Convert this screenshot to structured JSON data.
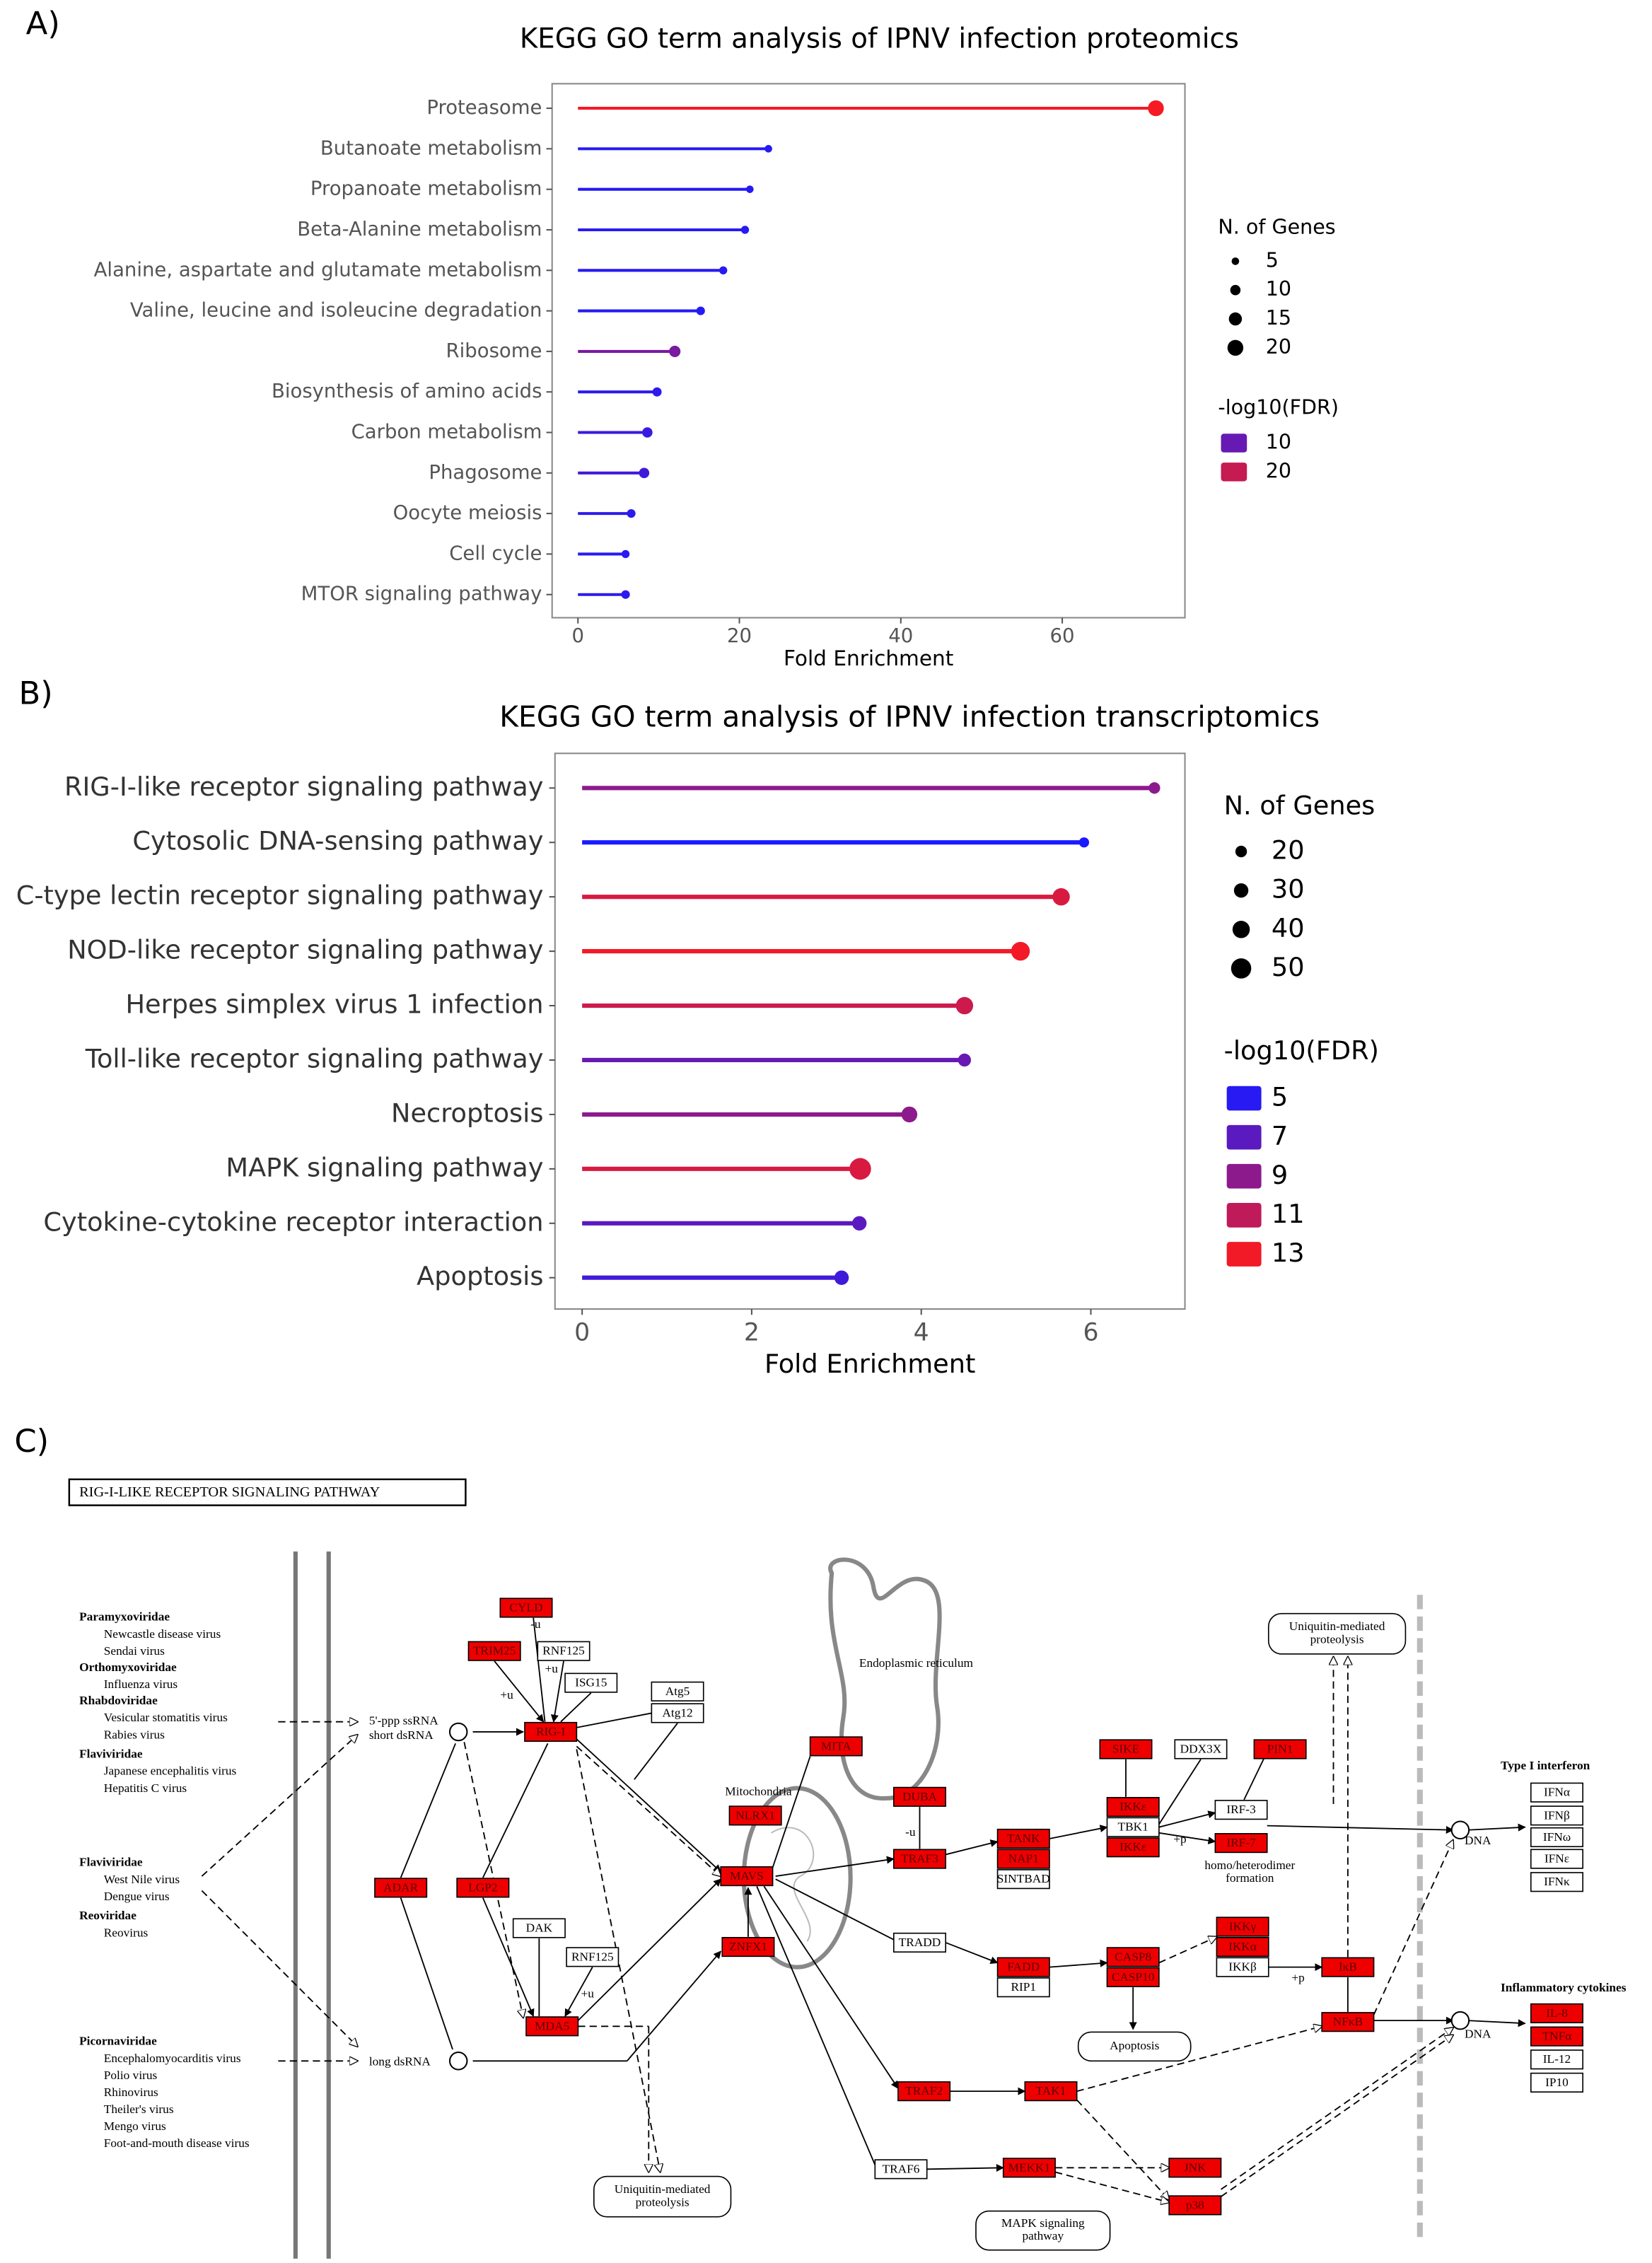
{
  "panel_labels": [
    "A)",
    "B)",
    "C)"
  ],
  "chart_data": [
    {
      "type": "lollipop",
      "title": "KEGG GO term analysis of IPNV infection proteomics",
      "categories": [
        "Proteasome",
        "Butanoate metabolism",
        "Propanoate metabolism",
        "Beta-Alanine metabolism",
        "Alanine, aspartate and glutamate metabolism",
        "Valine, leucine and isoleucine degradation",
        "Ribosome",
        "Biosynthesis of amino acids",
        "Carbon metabolism",
        "Phagosome",
        "Oocyte meiosis",
        "Cell cycle",
        "MTOR signaling pathway"
      ],
      "values": [
        71.6,
        23.6,
        21.3,
        20.7,
        18,
        15.2,
        12,
        9.8,
        8.6,
        8.2,
        6.6,
        5.9,
        5.9
      ],
      "sizes": [
        20,
        5,
        5,
        6,
        6,
        7,
        12,
        8,
        10,
        10,
        7,
        6,
        7
      ],
      "fdr": [
        25,
        3,
        3,
        3.5,
        3.5,
        3,
        12,
        4,
        5,
        6,
        4,
        3.5,
        4
      ],
      "xlabel": "Fold Enrichment",
      "xlim": [
        -3.2,
        75.2
      ],
      "xticks": [
        0,
        20,
        40,
        60
      ],
      "size_legend": {
        "title": "N. of Genes",
        "values": [
          5,
          10,
          15,
          20
        ]
      },
      "color_legend": {
        "title": "-log10(FDR)",
        "values": [
          10,
          20
        ]
      },
      "color_low": "#1a1aff",
      "color_high": "#ff1a1a",
      "color_lim": [
        2,
        26
      ],
      "size_lim": [
        5,
        20
      ]
    },
    {
      "type": "lollipop",
      "title": "KEGG GO term analysis of IPNV infection transcriptomics",
      "categories": [
        "RIG-I-like receptor signaling pathway",
        "Cytosolic DNA-sensing pathway",
        "C-type lectin receptor signaling pathway",
        "NOD-like receptor signaling pathway",
        "Herpes simplex virus 1 infection",
        "Toll-like receptor signaling pathway",
        "Necroptosis",
        "MAPK signaling pathway",
        "Cytokine-cytokine receptor interaction",
        "Apoptosis"
      ],
      "values": [
        6.75,
        5.92,
        5.65,
        5.17,
        4.51,
        4.51,
        3.86,
        3.28,
        3.27,
        3.06
      ],
      "sizes": [
        20,
        15,
        40,
        45,
        40,
        25,
        35,
        55,
        30,
        30
      ],
      "fdr": [
        9,
        4.5,
        12,
        13,
        11.5,
        7.5,
        9,
        12,
        7,
        6
      ],
      "xlabel": "Fold Enrichment",
      "xlim": [
        -0.32,
        7.11
      ],
      "xticks": [
        0,
        2,
        4,
        6
      ],
      "size_legend": {
        "title": "N. of Genes",
        "values": [
          20,
          30,
          40,
          50
        ]
      },
      "color_legend": {
        "title": "-log10(FDR)",
        "values": [
          5,
          7,
          9,
          11,
          13
        ]
      },
      "color_low": "#1a1aff",
      "color_high": "#ff1a1a",
      "color_lim": [
        4.5,
        13.5
      ],
      "size_lim": [
        20,
        50
      ]
    }
  ],
  "diagram": {
    "title": "RIG-I-LIKE RECEPTOR SIGNALING PATHWAY",
    "viruses": [
      {
        "family": "Paramyxoviridae",
        "members": [
          "Newcastle disease virus",
          "Sendai virus"
        ]
      },
      {
        "family": "Orthomyxoviridae",
        "members": [
          "Influenza virus"
        ]
      },
      {
        "family": "Rhabdoviridae",
        "members": [
          "Vesicular stomatitis virus",
          "Rabies virus"
        ]
      },
      {
        "family": "Flaviviridae",
        "members": [
          "Japanese encephalitis virus",
          "Hepatitis C virus"
        ]
      },
      {
        "family": "Flaviviridae",
        "members": [
          "West Nile virus",
          "Dengue virus"
        ]
      },
      {
        "family": "Reoviridae",
        "members": [
          "Reovirus"
        ]
      },
      {
        "family": "Picornaviridae",
        "members": [
          "Encephalomyocarditis virus",
          "Polio virus",
          "Rhinovirus",
          "Theiler's virus",
          "Mengo virus",
          "Foot-and-mouth disease virus"
        ]
      }
    ],
    "nodes": [
      {
        "label": "CYLD",
        "highlighted": true
      },
      {
        "label": "TRIM25",
        "highlighted": true
      },
      {
        "label": "RNF125",
        "highlighted": false
      },
      {
        "label": "ISG15",
        "highlighted": false
      },
      {
        "label": "Atg5",
        "highlighted": false
      },
      {
        "label": "Atg12",
        "highlighted": false
      },
      {
        "label": "RIG-I",
        "highlighted": true
      },
      {
        "label": "MITA",
        "highlighted": true
      },
      {
        "label": "NLRX1",
        "highlighted": true
      },
      {
        "label": "MAVS",
        "highlighted": true
      },
      {
        "label": "ZNFX1",
        "highlighted": true
      },
      {
        "label": "DUBA",
        "highlighted": true
      },
      {
        "label": "TRAF3",
        "highlighted": true
      },
      {
        "label": "TANK",
        "highlighted": true
      },
      {
        "label": "NAP1",
        "highlighted": true
      },
      {
        "label": "SINTBAD",
        "highlighted": false
      },
      {
        "label": "TRADD",
        "highlighted": false
      },
      {
        "label": "FADD",
        "highlighted": true
      },
      {
        "label": "RIP1",
        "highlighted": false
      },
      {
        "label": "CASP8",
        "highlighted": true
      },
      {
        "label": "CASP10",
        "highlighted": true
      },
      {
        "label": "SIKE",
        "highlighted": true
      },
      {
        "label": "DDX3X",
        "highlighted": false
      },
      {
        "label": "PIN1",
        "highlighted": true
      },
      {
        "label": "IKKε",
        "highlighted": true
      },
      {
        "label": "TBK1",
        "highlighted": false
      },
      {
        "label": "IKKε",
        "highlighted": true
      },
      {
        "label": "IRF-3",
        "highlighted": false
      },
      {
        "label": "IRF-7",
        "highlighted": true
      },
      {
        "label": "IKKγ",
        "highlighted": true
      },
      {
        "label": "IKKα",
        "highlighted": true
      },
      {
        "label": "IKKβ",
        "highlighted": false
      },
      {
        "label": "IκB",
        "highlighted": true
      },
      {
        "label": "NFκB",
        "highlighted": true
      },
      {
        "label": "ADAR",
        "highlighted": true
      },
      {
        "label": "LGP2",
        "highlighted": true
      },
      {
        "label": "DAK",
        "highlighted": false
      },
      {
        "label": "RNF125",
        "highlighted": false
      },
      {
        "label": "MDA5",
        "highlighted": true
      },
      {
        "label": "TRAF2",
        "highlighted": true
      },
      {
        "label": "TAK1",
        "highlighted": true
      },
      {
        "label": "TRAF6",
        "highlighted": false
      },
      {
        "label": "MEKK1",
        "highlighted": true
      },
      {
        "label": "JNK",
        "highlighted": true
      },
      {
        "label": "p38",
        "highlighted": true
      },
      {
        "label": "IFNα",
        "highlighted": false
      },
      {
        "label": "IFNβ",
        "highlighted": false
      },
      {
        "label": "IFNω",
        "highlighted": false
      },
      {
        "label": "IFNε",
        "highlighted": false
      },
      {
        "label": "IFNκ",
        "highlighted": false
      },
      {
        "label": "IL-8",
        "highlighted": true
      },
      {
        "label": "TNFα",
        "highlighted": true
      },
      {
        "label": "IL-12",
        "highlighted": false
      },
      {
        "label": "IP10",
        "highlighted": false
      }
    ],
    "labels": [
      "5'-ppp ssRNA",
      "short dsRNA",
      "long dsRNA",
      "Endoplasmic reticulum",
      "Mitochondria",
      "homo/heterodimer",
      "formation",
      "DNA",
      "DNA"
    ],
    "section_labels": [
      "Type I interferon",
      "Inflammatory cytokines"
    ],
    "modifiers": [
      "-u",
      "+u",
      "+u",
      "-u",
      "+p",
      "+p",
      "+u"
    ],
    "ovals": [
      {
        "lines": [
          "Uniquitin-mediated",
          "proteolysis"
        ]
      },
      {
        "lines": [
          "Uniquitin-mediated",
          "proteolysis"
        ]
      },
      {
        "lines": [
          "Apoptosis"
        ]
      },
      {
        "lines": [
          "MAPK signaling",
          "pathway"
        ]
      }
    ]
  }
}
